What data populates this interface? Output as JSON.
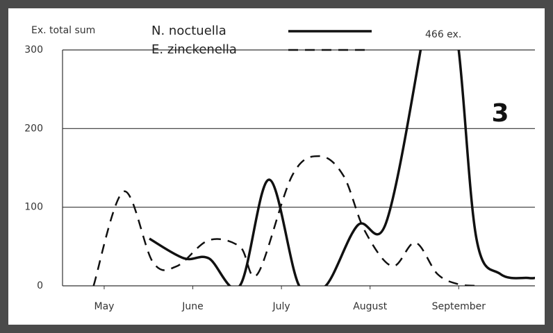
{
  "chart_data": {
    "type": "line",
    "title": "3",
    "y_label": "Ex. total sum",
    "annotation": "466 ex.",
    "xlim": [
      0.53,
      5.86
    ],
    "xticks": [
      {
        "value": 1,
        "label": "May"
      },
      {
        "value": 2,
        "label": "June"
      },
      {
        "value": 3,
        "label": "July"
      },
      {
        "value": 4,
        "label": "August"
      },
      {
        "value": 5,
        "label": "September"
      }
    ],
    "ylim": [
      0,
      300
    ],
    "yticks": [
      0,
      100,
      200,
      300
    ],
    "grid": true,
    "series": [
      {
        "name": "N. noctuella",
        "color": "#111111",
        "dash": "solid",
        "x": [
          1.51,
          1.9,
          2.18,
          2.53,
          2.86,
          3.2,
          3.5,
          3.86,
          4.18,
          4.57,
          4.78,
          5.0,
          5.2,
          5.47,
          5.78,
          5.86
        ],
        "values": [
          60,
          35,
          35,
          0,
          135,
          0,
          0,
          77,
          80,
          300,
          466,
          300,
          60,
          15,
          10,
          10
        ]
      },
      {
        "name": "E. zinckenella",
        "color": "#111111",
        "dash": "dashed",
        "x": [
          0.88,
          1.22,
          1.55,
          1.82,
          2.18,
          2.53,
          2.73,
          3.12,
          3.43,
          3.7,
          3.94,
          4.25,
          4.51,
          4.76,
          5.0,
          5.24
        ],
        "values": [
          0,
          120,
          30,
          25,
          58,
          50,
          15,
          140,
          165,
          140,
          70,
          25,
          55,
          15,
          2,
          0
        ]
      }
    ]
  }
}
